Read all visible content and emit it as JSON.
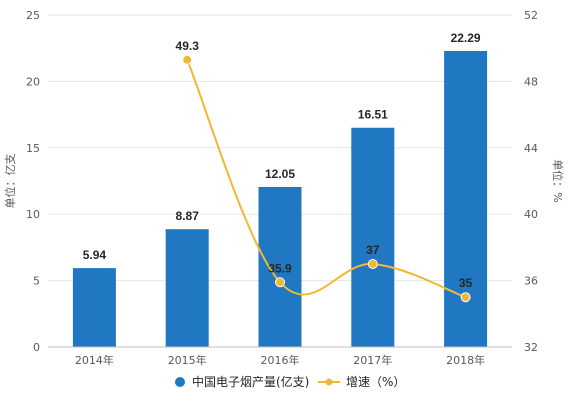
{
  "chart_data": {
    "type": "bar",
    "categories": [
      "2014年",
      "2015年",
      "2016年",
      "2017年",
      "2018年"
    ],
    "series": [
      {
        "name": "中国电子烟产量(亿支)",
        "type": "bar",
        "axis": "left",
        "values": [
          5.94,
          8.87,
          12.05,
          16.51,
          22.29
        ],
        "labels": [
          "5.94",
          "8.87",
          "12.05",
          "16.51",
          "22.29"
        ],
        "color": "#1f78c1"
      },
      {
        "name": "增速（%）",
        "type": "line",
        "axis": "right",
        "values": [
          null,
          49.3,
          35.9,
          37,
          35
        ],
        "labels": [
          "",
          "49.3",
          "35.9",
          "37",
          "35"
        ],
        "color": "#f0b833"
      }
    ],
    "y_left": {
      "label": "单位：亿支",
      "ylim": [
        0,
        25
      ],
      "ticks": [
        "0",
        "5",
        "10",
        "15",
        "20",
        "25"
      ]
    },
    "y_right": {
      "label": "单位：%",
      "ylim": [
        32,
        52
      ],
      "ticks": [
        "32",
        "36",
        "40",
        "44",
        "48",
        "52"
      ]
    },
    "grid": true,
    "legend_position": "bottom"
  }
}
